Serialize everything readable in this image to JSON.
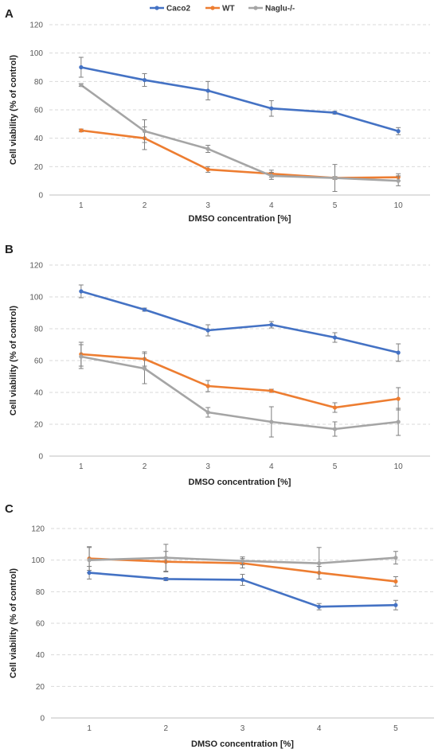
{
  "legend": [
    {
      "name": "Caco2",
      "color": "#4472C4"
    },
    {
      "name": "WT",
      "color": "#ED7D31"
    },
    {
      "name": "Naglu-/-",
      "color": "#A5A5A5"
    }
  ],
  "chart_data": [
    {
      "type": "line",
      "panel_label": "A",
      "categories": [
        "1",
        "2",
        "3",
        "4",
        "5",
        "10"
      ],
      "xlabel": "DMSO concentration [%]",
      "ylabel": "Cell viability (% of control)",
      "ylim": [
        0,
        120
      ],
      "yticks": [
        0,
        20,
        40,
        60,
        80,
        100,
        120
      ],
      "grid": true,
      "series": [
        {
          "name": "Caco2",
          "values": [
            90,
            81,
            73.5,
            61,
            58,
            45
          ],
          "errors": [
            7,
            4.5,
            6.5,
            5.5,
            1,
            2.5
          ]
        },
        {
          "name": "WT",
          "values": [
            45.5,
            40,
            18,
            15,
            12,
            12.5
          ],
          "errors": [
            1,
            8,
            2,
            2.5,
            1,
            2.5
          ]
        },
        {
          "name": "Naglu-/-",
          "values": [
            77.5,
            45,
            32.5,
            13.5,
            12,
            10
          ],
          "errors": [
            1,
            8,
            2.5,
            2.5,
            9.5,
            3.5
          ]
        }
      ]
    },
    {
      "type": "line",
      "panel_label": "B",
      "categories": [
        "1",
        "2",
        "3",
        "4",
        "5",
        "10"
      ],
      "xlabel": "DMSO concentration [%]",
      "ylabel": "Cell viability (% of control)",
      "ylim": [
        0,
        120
      ],
      "yticks": [
        0,
        20,
        40,
        60,
        80,
        100,
        120
      ],
      "grid": true,
      "series": [
        {
          "name": "Caco2",
          "values": [
            103.5,
            92,
            79,
            82.5,
            74.5,
            65
          ],
          "errors": [
            4,
            1,
            3.5,
            2,
            3,
            5.5
          ]
        },
        {
          "name": "WT",
          "values": [
            64,
            61,
            44,
            41,
            30.5,
            36
          ],
          "errors": [
            7.5,
            4.5,
            3.5,
            1,
            3,
            7
          ]
        },
        {
          "name": "Naglu-/-",
          "values": [
            62.5,
            55,
            27.5,
            21.5,
            17,
            21.5
          ],
          "errors": [
            7.5,
            9.5,
            3,
            9.5,
            4.5,
            8.5
          ]
        }
      ]
    },
    {
      "type": "line",
      "panel_label": "C",
      "categories": [
        "1",
        "2",
        "3",
        "4",
        "5"
      ],
      "xlabel": "DMSO concentration [%]",
      "ylabel": "Cell viability (% of control)",
      "ylim": [
        0,
        120
      ],
      "yticks": [
        0,
        20,
        40,
        60,
        80,
        100,
        120
      ],
      "grid": true,
      "series": [
        {
          "name": "Caco2",
          "values": [
            92,
            88,
            87.5,
            70.5,
            71.5
          ],
          "errors": [
            4,
            1,
            3.5,
            2,
            3
          ]
        },
        {
          "name": "WT",
          "values": [
            101,
            99,
            98,
            92,
            86.5
          ],
          "errors": [
            7.5,
            6.5,
            3,
            4,
            3
          ]
        },
        {
          "name": "Naglu-/-",
          "values": [
            100,
            101.5,
            99.5,
            98,
            101.5
          ],
          "errors": [
            8,
            8.5,
            2.5,
            10,
            4
          ]
        }
      ]
    }
  ]
}
